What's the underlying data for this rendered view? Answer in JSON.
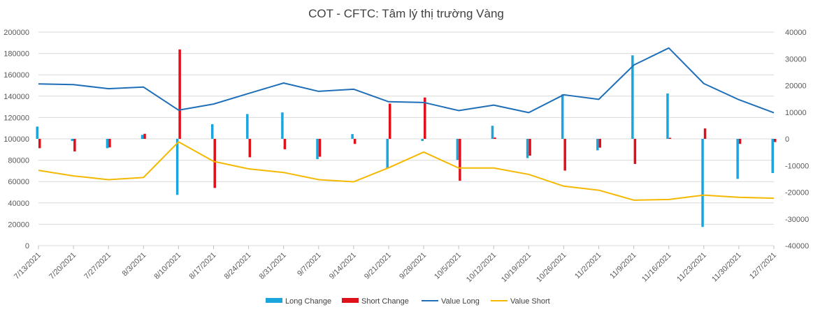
{
  "chart_data": {
    "type": "bar+line",
    "title": "COT - CFTC: Tâm lý thị trường Vàng",
    "categories": [
      "7/13/2021",
      "7/20/2021",
      "7/27/2021",
      "8/3/2021",
      "8/10/2021",
      "8/17/2021",
      "8/24/2021",
      "8/31/2021",
      "9/7/2021",
      "9/14/2021",
      "9/21/2021",
      "9/28/2021",
      "10/5/2021",
      "10/12/2021",
      "10/19/2021",
      "10/26/2021",
      "11/2/2021",
      "11/9/2021",
      "11/16/2021",
      "11/23/2021",
      "11/30/2021",
      "12/7/2021"
    ],
    "y_left": {
      "min": 0,
      "max": 200000,
      "ticks": [
        "0",
        "20000",
        "40000",
        "60000",
        "80000",
        "100000",
        "120000",
        "140000",
        "160000",
        "180000",
        "200000"
      ]
    },
    "y_right": {
      "min": -40000,
      "max": 40000,
      "ticks": [
        "-40000",
        "-30000",
        "-20000",
        "-10000",
        "0",
        "10000",
        "20000",
        "30000",
        "40000"
      ]
    },
    "grid": true,
    "legend_position": "bottom",
    "series": [
      {
        "name": "Long Change",
        "type": "bar",
        "axis": "right",
        "color": "#1aa6dc",
        "values": [
          4600,
          -800,
          -3500,
          1500,
          -21000,
          5500,
          9300,
          9900,
          -7600,
          1800,
          -11000,
          -800,
          -7900,
          4900,
          -7200,
          16700,
          -4300,
          31300,
          17000,
          -33000,
          -15000,
          -12800
        ]
      },
      {
        "name": "Short Change",
        "type": "bar",
        "axis": "right",
        "color": "#e0101a",
        "values": [
          -3500,
          -4700,
          -3200,
          1900,
          33500,
          -18400,
          -6900,
          -3900,
          -6700,
          -1900,
          13200,
          15500,
          -15700,
          500,
          -6300,
          -11900,
          -3300,
          -9400,
          400,
          3900,
          -1900,
          -1200
        ]
      },
      {
        "name": "Value Long",
        "type": "line",
        "axis": "left",
        "color": "#1f6fb8",
        "values": [
          151500,
          150800,
          147000,
          148500,
          126900,
          132600,
          142500,
          152300,
          144500,
          146500,
          134800,
          134100,
          126500,
          131600,
          124600,
          141300,
          137000,
          169100,
          185100,
          151800,
          136700,
          124500
        ]
      },
      {
        "name": "Value Short",
        "type": "line",
        "axis": "left",
        "color": "#f5b800",
        "values": [
          70500,
          65300,
          61800,
          63800,
          97200,
          78900,
          71900,
          68500,
          61800,
          59800,
          72900,
          87600,
          72700,
          72700,
          66700,
          55700,
          51900,
          42600,
          43200,
          47300,
          45300,
          44400
        ]
      }
    ]
  }
}
